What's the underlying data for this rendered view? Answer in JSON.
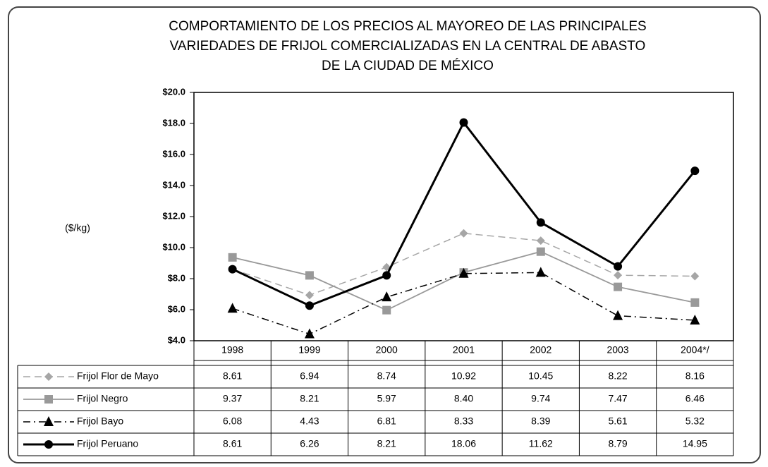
{
  "chart_data": {
    "type": "line",
    "title": [
      "COMPORTAMIENTO DE LOS PRECIOS AL MAYOREO DE LAS PRINCIPALES",
      "VARIEDADES DE FRIJOL COMERCIALIZADAS EN LA CENTRAL DE ABASTO",
      "DE LA CIUDAD DE MÉXICO"
    ],
    "y_label": "($/kg)",
    "categories": [
      "1998",
      "1999",
      "2000",
      "2001",
      "2002",
      "2003",
      "2004*/"
    ],
    "ylim": [
      4,
      20
    ],
    "yticks": [
      {
        "value": 4,
        "label": "$4.0"
      },
      {
        "value": 6,
        "label": "$6.0"
      },
      {
        "value": 8,
        "label": "$8.0"
      },
      {
        "value": 10,
        "label": "$10.0"
      },
      {
        "value": 12,
        "label": "$12.0"
      },
      {
        "value": 14,
        "label": "$14.0"
      },
      {
        "value": 16,
        "label": "$16.0"
      },
      {
        "value": 18,
        "label": "$18.0"
      },
      {
        "value": 20,
        "label": "$20.0"
      }
    ],
    "series": [
      {
        "name": "Frijol Flor de Mayo",
        "color": "#a6a6a6",
        "linestyle": "dashed",
        "marker": "diamond",
        "values": [
          8.61,
          6.94,
          8.74,
          10.92,
          10.45,
          8.22,
          8.16
        ],
        "value_labels": [
          "8.61",
          "6.94",
          "8.74",
          "10.92",
          "10.45",
          "8.22",
          "8.16"
        ]
      },
      {
        "name": "Frijol Negro",
        "color": "#999999",
        "linestyle": "solid",
        "marker": "square",
        "values": [
          9.37,
          8.21,
          5.97,
          8.4,
          9.74,
          7.47,
          6.46
        ],
        "value_labels": [
          "9.37",
          "8.21",
          "5.97",
          "8.40",
          "9.74",
          "7.47",
          "6.46"
        ]
      },
      {
        "name": "Frijol Bayo",
        "color": "#000000",
        "linestyle": "dashdot",
        "marker": "triangle",
        "values": [
          6.08,
          4.43,
          6.81,
          8.33,
          8.39,
          5.61,
          5.32
        ],
        "value_labels": [
          "6.08",
          "4.43",
          "6.81",
          "8.33",
          "8.39",
          "5.61",
          "5.32"
        ]
      },
      {
        "name": "Frijol Peruano",
        "color": "#000000",
        "linestyle": "thick",
        "marker": "circle",
        "values": [
          8.61,
          6.26,
          8.21,
          18.06,
          11.62,
          8.79,
          14.95
        ],
        "value_labels": [
          "8.61",
          "6.26",
          "8.21",
          "18.06",
          "11.62",
          "8.79",
          "14.95"
        ]
      }
    ]
  }
}
